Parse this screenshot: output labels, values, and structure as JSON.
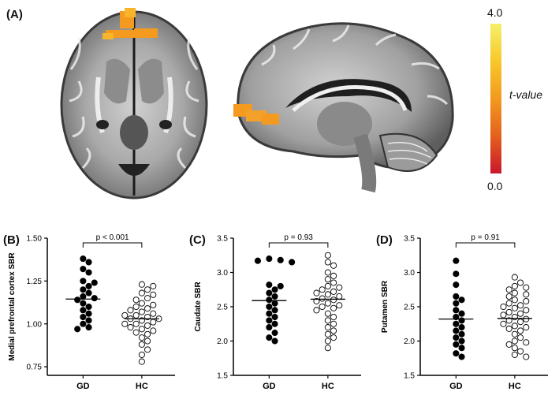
{
  "figure": {
    "panel_a_label": "(A)",
    "colorbar": {
      "max": "4.0",
      "min": "0.0",
      "title": "t-value"
    }
  },
  "chart_data": [
    {
      "type": "scatter",
      "panel": "(B)",
      "ylabel": "Medial prefrontal cortex SBR",
      "categories": [
        "GD",
        "HC"
      ],
      "ylim": [
        0.7,
        1.5
      ],
      "yticks": [
        "0.75",
        "1.00",
        "1.25",
        "1.50"
      ],
      "yticks_values": [
        0.75,
        1.0,
        1.25,
        1.5
      ],
      "annotation": "p < 0.001",
      "series": [
        {
          "name": "GD",
          "filled": true,
          "mean": 1.145,
          "values": [
            1.38,
            1.36,
            1.32,
            1.3,
            1.25,
            1.24,
            1.22,
            1.2,
            1.18,
            1.16,
            1.15,
            1.14,
            1.12,
            1.1,
            1.08,
            1.06,
            1.04,
            1.02,
            1.0,
            0.98,
            0.97
          ]
        },
        {
          "name": "HC",
          "filled": false,
          "mean": 1.03,
          "values": [
            1.23,
            1.22,
            1.2,
            1.18,
            1.17,
            1.15,
            1.14,
            1.12,
            1.11,
            1.1,
            1.09,
            1.08,
            1.07,
            1.06,
            1.05,
            1.05,
            1.04,
            1.03,
            1.03,
            1.02,
            1.01,
            1.0,
            1.0,
            0.99,
            0.98,
            0.97,
            0.96,
            0.95,
            0.94,
            0.92,
            0.9,
            0.88,
            0.85,
            0.82,
            0.78
          ]
        }
      ]
    },
    {
      "type": "scatter",
      "panel": "(C)",
      "ylabel": "Caudate SBR",
      "categories": [
        "GD",
        "HC"
      ],
      "ylim": [
        1.5,
        3.5
      ],
      "yticks": [
        "1.5",
        "2.0",
        "2.5",
        "3.0",
        "3.5"
      ],
      "yticks_values": [
        1.5,
        2.0,
        2.5,
        3.0,
        3.5
      ],
      "annotation": "p = 0.93",
      "series": [
        {
          "name": "GD",
          "filled": true,
          "mean": 2.59,
          "values": [
            3.2,
            3.18,
            3.17,
            3.15,
            2.82,
            2.8,
            2.75,
            2.7,
            2.65,
            2.6,
            2.55,
            2.5,
            2.45,
            2.4,
            2.35,
            2.3,
            2.25,
            2.2,
            2.12,
            2.05,
            2.0
          ]
        },
        {
          "name": "HC",
          "filled": false,
          "mean": 2.61,
          "values": [
            3.25,
            3.15,
            3.1,
            3.0,
            2.95,
            2.9,
            2.85,
            2.8,
            2.78,
            2.75,
            2.72,
            2.7,
            2.68,
            2.65,
            2.62,
            2.6,
            2.58,
            2.55,
            2.52,
            2.5,
            2.48,
            2.45,
            2.4,
            2.35,
            2.3,
            2.25,
            2.2,
            2.15,
            2.1,
            2.05,
            2.0,
            1.9
          ]
        }
      ]
    },
    {
      "type": "scatter",
      "panel": "(D)",
      "ylabel": "Putamen SBR",
      "categories": [
        "GD",
        "HC"
      ],
      "ylim": [
        1.5,
        3.5
      ],
      "yticks": [
        "1.5",
        "2.0",
        "2.5",
        "3.0",
        "3.5"
      ],
      "yticks_values": [
        1.5,
        2.0,
        2.5,
        3.0,
        3.5
      ],
      "annotation": "p = 0.91",
      "series": [
        {
          "name": "GD",
          "filled": true,
          "mean": 2.32,
          "values": [
            3.17,
            2.98,
            2.82,
            2.65,
            2.6,
            2.55,
            2.45,
            2.4,
            2.35,
            2.3,
            2.25,
            2.2,
            2.15,
            2.1,
            2.05,
            2.0,
            1.95,
            1.9,
            1.82,
            1.77
          ]
        },
        {
          "name": "HC",
          "filled": false,
          "mean": 2.33,
          "values": [
            2.93,
            2.85,
            2.8,
            2.78,
            2.75,
            2.7,
            2.68,
            2.65,
            2.6,
            2.58,
            2.55,
            2.52,
            2.5,
            2.48,
            2.45,
            2.42,
            2.4,
            2.38,
            2.35,
            2.32,
            2.3,
            2.28,
            2.25,
            2.22,
            2.2,
            2.18,
            2.15,
            2.1,
            2.05,
            2.0,
            1.98,
            1.95,
            1.9,
            1.85,
            1.8,
            1.77
          ]
        }
      ]
    }
  ]
}
